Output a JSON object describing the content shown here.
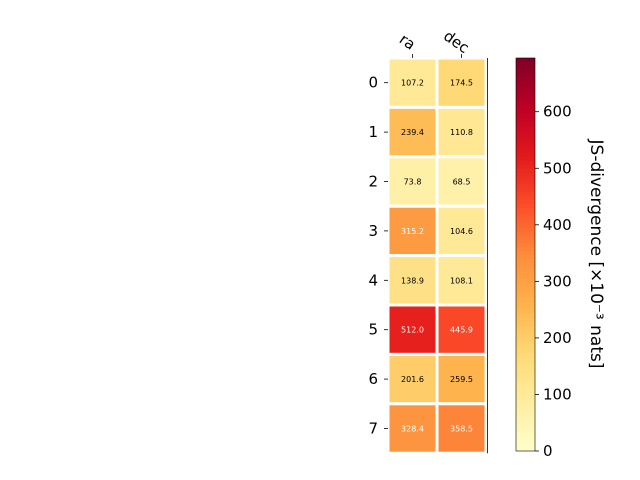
{
  "chart_data": {
    "type": "heatmap",
    "columns": [
      "ra",
      "dec"
    ],
    "rows": [
      "0",
      "1",
      "2",
      "3",
      "4",
      "5",
      "6",
      "7"
    ],
    "values": [
      [
        107.2,
        174.5
      ],
      [
        239.4,
        110.8
      ],
      [
        73.8,
        68.5
      ],
      [
        315.2,
        104.6
      ],
      [
        138.9,
        108.1
      ],
      [
        512.0,
        445.9
      ],
      [
        201.6,
        259.5
      ],
      [
        328.4,
        358.5
      ]
    ],
    "value_format_decimals": 1,
    "colormap": "YlOrRd",
    "colorbar": {
      "label": "JS-divergence [×10⁻³ nats]",
      "range": [
        0,
        695
      ],
      "ticks": [
        "0",
        "100",
        "200",
        "300",
        "400",
        "500",
        "600"
      ],
      "tick_values": [
        0,
        100,
        200,
        300,
        400,
        500,
        600
      ]
    },
    "cell_border_color": "#ffffff"
  }
}
